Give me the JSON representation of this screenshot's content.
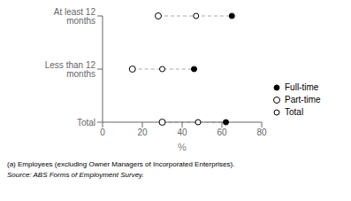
{
  "chart_data": {
    "type": "dot",
    "orientation": "horizontal",
    "categories": [
      "At least 12 months",
      "Less than 12 months",
      "Total"
    ],
    "series": [
      {
        "name": "Full-time",
        "values": [
          65,
          46,
          62
        ],
        "color": "#000000",
        "marker": "filled"
      },
      {
        "name": "Part-time",
        "values": [
          28,
          15,
          30
        ],
        "color": "#000000",
        "marker": "open"
      },
      {
        "name": "Total",
        "values": [
          47,
          30,
          48
        ],
        "color": "#000000",
        "marker": "open"
      }
    ],
    "color": "#aaaaaa",
    "line_style": "dashed",
    "xlabel": "%",
    "xlim": [
      0,
      80
    ],
    "xticks": [
      0,
      20,
      40,
      60,
      80
    ],
    "legend": "right",
    "annotations": [
      "(a) Employees (excluding Owner Managers of Incorporated Enterprises).",
      "Source: ABS Forms of Employment Survey."
    ]
  }
}
